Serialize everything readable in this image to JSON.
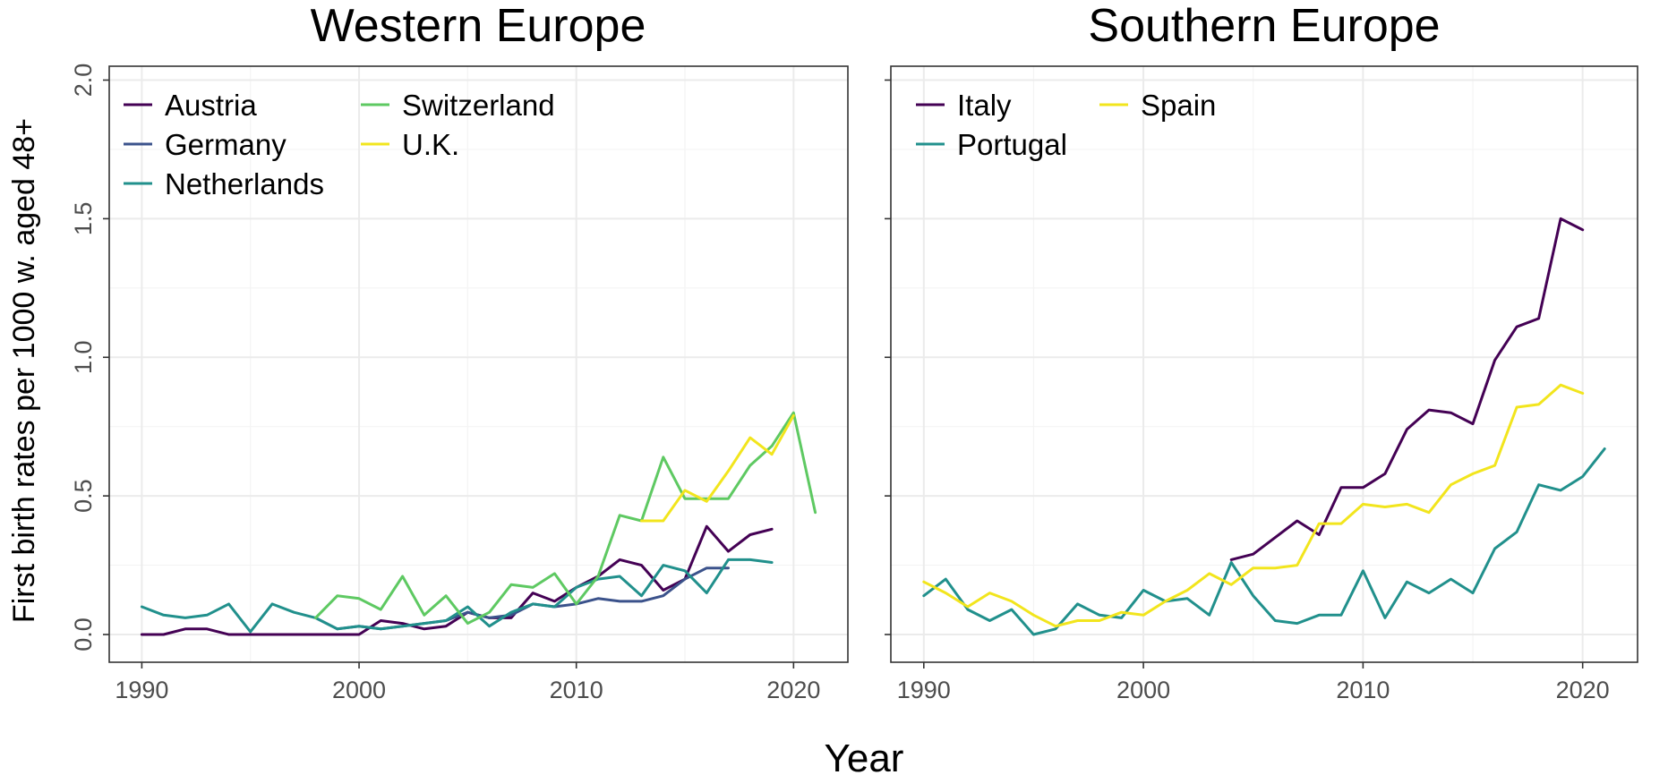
{
  "chart_data": [
    {
      "type": "line",
      "title": "Western Europe",
      "ylabel": "First birth rates per 1000 w. aged 48+",
      "xlabel": "Year",
      "xlim": [
        1988.5,
        2022.5
      ],
      "ylim": [
        -0.1,
        2.05
      ],
      "xticks": [
        1990,
        2000,
        2010,
        2020
      ],
      "yticks": [
        0.0,
        0.5,
        1.0,
        1.5,
        2.0
      ],
      "ytick_labels": [
        "0.0",
        "0.5",
        "1.0",
        "1.5",
        "2.0"
      ],
      "grid": true,
      "legend_position": "top-left",
      "series": [
        {
          "name": "Austria",
          "color": "#440154",
          "x": [
            1990,
            1991,
            1992,
            1993,
            1994,
            1995,
            1996,
            1997,
            1998,
            1999,
            2000,
            2001,
            2002,
            2003,
            2004,
            2005,
            2006,
            2007,
            2008,
            2009,
            2010,
            2011,
            2012,
            2013,
            2014,
            2015,
            2016,
            2017,
            2018,
            2019
          ],
          "y": [
            0,
            0,
            0.02,
            0.02,
            0,
            0,
            0,
            0,
            0,
            0,
            0,
            0.05,
            0.04,
            0.02,
            0.03,
            0.08,
            0.06,
            0.06,
            0.15,
            0.12,
            0.17,
            0.21,
            0.27,
            0.25,
            0.16,
            0.2,
            0.39,
            0.3,
            0.36,
            0.38
          ]
        },
        {
          "name": "Germany",
          "color": "#3b528b",
          "x": [
            1998,
            1999,
            2000,
            2001,
            2002,
            2003,
            2004,
            2005,
            2006,
            2007,
            2008,
            2009,
            2010,
            2011,
            2012,
            2013,
            2014,
            2015,
            2016,
            2017
          ],
          "y": [
            0.06,
            0.02,
            0.03,
            0.02,
            0.03,
            0.04,
            0.05,
            0.08,
            0.06,
            0.07,
            0.11,
            0.1,
            0.11,
            0.13,
            0.12,
            0.12,
            0.14,
            0.2,
            0.24,
            0.24
          ]
        },
        {
          "name": "Netherlands",
          "color": "#21908c",
          "x": [
            1990,
            1991,
            1992,
            1993,
            1994,
            1995,
            1996,
            1997,
            1998,
            1999,
            2000,
            2001,
            2002,
            2003,
            2004,
            2005,
            2006,
            2007,
            2008,
            2009,
            2010,
            2011,
            2012,
            2013,
            2014,
            2015,
            2016,
            2017,
            2018,
            2019
          ],
          "y": [
            0.1,
            0.07,
            0.06,
            0.07,
            0.11,
            0.01,
            0.11,
            0.08,
            0.06,
            0.02,
            0.03,
            0.02,
            0.03,
            0.04,
            0.05,
            0.1,
            0.03,
            0.08,
            0.11,
            0.1,
            0.17,
            0.2,
            0.21,
            0.14,
            0.25,
            0.23,
            0.15,
            0.27,
            0.27,
            0.26
          ]
        },
        {
          "name": "Switzerland",
          "color": "#5ec962",
          "x": [
            1998,
            1999,
            2000,
            2001,
            2002,
            2003,
            2004,
            2005,
            2006,
            2007,
            2008,
            2009,
            2010,
            2011,
            2012,
            2013,
            2014,
            2015,
            2016,
            2017,
            2018,
            2019,
            2020,
            2021
          ],
          "y": [
            0.06,
            0.14,
            0.13,
            0.09,
            0.21,
            0.07,
            0.14,
            0.04,
            0.08,
            0.18,
            0.17,
            0.22,
            0.11,
            0.21,
            0.43,
            0.41,
            0.64,
            0.49,
            0.49,
            0.49,
            0.61,
            0.68,
            0.8,
            0.44
          ]
        },
        {
          "name": "U.K.",
          "color": "#f2e51d",
          "x": [
            2013,
            2014,
            2015,
            2016,
            2017,
            2018,
            2019,
            2020
          ],
          "y": [
            0.41,
            0.41,
            0.52,
            0.48,
            0.59,
            0.71,
            0.65,
            0.79
          ]
        }
      ]
    },
    {
      "type": "line",
      "title": "Southern Europe",
      "xlabel": "Year",
      "xlim": [
        1988.5,
        2022.5
      ],
      "ylim": [
        -0.1,
        2.05
      ],
      "xticks": [
        1990,
        2000,
        2010,
        2020
      ],
      "grid": true,
      "legend_position": "top-left",
      "series": [
        {
          "name": "Italy",
          "color": "#440154",
          "x": [
            2004,
            2005,
            2006,
            2007,
            2008,
            2009,
            2010,
            2011,
            2012,
            2013,
            2014,
            2015,
            2016,
            2017,
            2018,
            2019,
            2020
          ],
          "y": [
            0.27,
            0.29,
            0.35,
            0.41,
            0.36,
            0.53,
            0.53,
            0.58,
            0.74,
            0.81,
            0.8,
            0.76,
            0.99,
            1.11,
            1.14,
            1.5,
            1.46
          ]
        },
        {
          "name": "Portugal",
          "color": "#21908c",
          "x": [
            1990,
            1991,
            1992,
            1993,
            1994,
            1995,
            1996,
            1997,
            1998,
            1999,
            2000,
            2001,
            2002,
            2003,
            2004,
            2005,
            2006,
            2007,
            2008,
            2009,
            2010,
            2011,
            2012,
            2013,
            2014,
            2015,
            2016,
            2017,
            2018,
            2019,
            2020,
            2021
          ],
          "y": [
            0.14,
            0.2,
            0.09,
            0.05,
            0.09,
            0,
            0.02,
            0.11,
            0.07,
            0.06,
            0.16,
            0.12,
            0.13,
            0.07,
            0.26,
            0.14,
            0.05,
            0.04,
            0.07,
            0.07,
            0.23,
            0.06,
            0.19,
            0.15,
            0.2,
            0.15,
            0.31,
            0.37,
            0.54,
            0.52,
            0.57,
            0.67
          ]
        },
        {
          "name": "Spain",
          "color": "#f2e51d",
          "x": [
            1990,
            1991,
            1992,
            1993,
            1994,
            1995,
            1996,
            1997,
            1998,
            1999,
            2000,
            2001,
            2002,
            2003,
            2004,
            2005,
            2006,
            2007,
            2008,
            2009,
            2010,
            2011,
            2012,
            2013,
            2014,
            2015,
            2016,
            2017,
            2018,
            2019,
            2020
          ],
          "y": [
            0.19,
            0.15,
            0.1,
            0.15,
            0.12,
            0.07,
            0.03,
            0.05,
            0.05,
            0.08,
            0.07,
            0.12,
            0.16,
            0.22,
            0.18,
            0.24,
            0.24,
            0.25,
            0.4,
            0.4,
            0.47,
            0.46,
            0.47,
            0.44,
            0.54,
            0.58,
            0.61,
            0.82,
            0.83,
            0.9,
            0.87
          ]
        }
      ]
    }
  ]
}
